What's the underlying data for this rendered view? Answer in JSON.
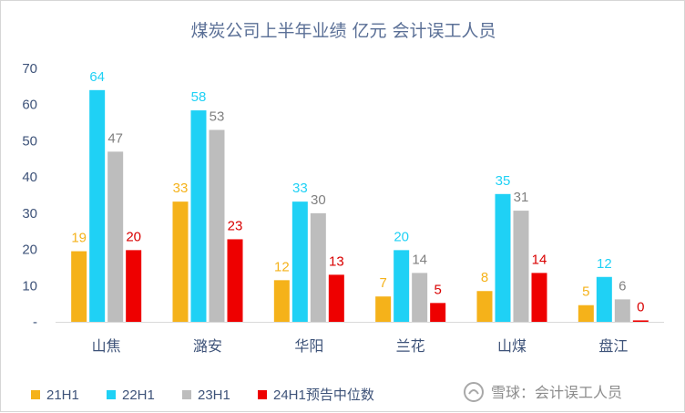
{
  "chart_data": {
    "type": "bar",
    "title": "煤炭公司上半年业绩 亿元 会计误工人员",
    "categories": [
      "山焦",
      "潞安",
      "华阳",
      "兰花",
      "山煤",
      "盘江"
    ],
    "series": [
      {
        "name": "21H1",
        "color": "#f5b21a",
        "values": [
          19,
          33,
          12,
          7,
          8,
          5
        ]
      },
      {
        "name": "22H1",
        "color": "#1fd1f5",
        "values": [
          64,
          58,
          33,
          20,
          35,
          12
        ]
      },
      {
        "name": "23H1",
        "color": "#bdbdbd",
        "values": [
          47,
          53,
          30,
          14,
          31,
          6
        ]
      },
      {
        "name": "24H1预告中位数",
        "color": "#ee0000",
        "values": [
          20,
          23,
          13,
          5,
          14,
          0
        ]
      }
    ],
    "bar_values": [
      [
        19.5,
        33.2,
        11.5,
        7,
        8.5,
        4.6
      ],
      [
        64,
        58.4,
        33.2,
        19.8,
        35.3,
        12.4
      ],
      [
        47,
        53,
        30,
        13.5,
        30.7,
        6.2
      ],
      [
        19.8,
        22.8,
        13,
        5.2,
        13.5,
        0.4
      ]
    ],
    "label_colors": [
      "#f5b21a",
      "#1fd1f5",
      "#808080",
      "#d90000"
    ],
    "yticks": [
      "-",
      "10",
      "20",
      "30",
      "40",
      "50",
      "60",
      "70"
    ],
    "ylim": [
      0,
      70
    ],
    "grid": false,
    "legend_position": "bottom-left"
  },
  "watermark": "雪球：会计误工人员"
}
